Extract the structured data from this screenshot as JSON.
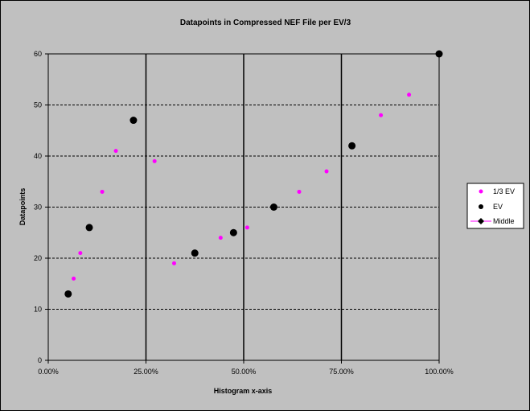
{
  "chart_data": {
    "type": "scatter",
    "title": "Datapoints in Compressed NEF File per EV/3",
    "xlabel": "Histogram x-axis",
    "ylabel": "Datapoints",
    "xlim": [
      0,
      1
    ],
    "ylim": [
      0,
      60
    ],
    "x_ticks": [
      0,
      0.25,
      0.5,
      0.75,
      1
    ],
    "x_tick_labels": [
      "0.00%",
      "25.00%",
      "50.00%",
      "75.00%",
      "100.00%"
    ],
    "y_ticks": [
      0,
      10,
      20,
      30,
      40,
      50,
      60
    ],
    "y_tick_labels": [
      "0",
      "10",
      "20",
      "30",
      "40",
      "50",
      "60"
    ],
    "grid": {
      "vertical": "solid",
      "horizontal": "dashed"
    },
    "legend_position": "right",
    "series": [
      {
        "name": "1/3 EV",
        "color": "#ff00ff",
        "marker": "small-dot",
        "points": [
          {
            "x": 0.065,
            "y": 16
          },
          {
            "x": 0.082,
            "y": 21
          },
          {
            "x": 0.138,
            "y": 33
          },
          {
            "x": 0.173,
            "y": 41
          },
          {
            "x": 0.272,
            "y": 39
          },
          {
            "x": 0.322,
            "y": 19
          },
          {
            "x": 0.441,
            "y": 24
          },
          {
            "x": 0.509,
            "y": 26
          },
          {
            "x": 0.642,
            "y": 33
          },
          {
            "x": 0.712,
            "y": 37
          },
          {
            "x": 0.851,
            "y": 48
          },
          {
            "x": 0.923,
            "y": 52
          }
        ]
      },
      {
        "name": "EV",
        "color": "#000000",
        "marker": "large-dot",
        "points": [
          {
            "x": 0.051,
            "y": 13
          },
          {
            "x": 0.105,
            "y": 26
          },
          {
            "x": 0.218,
            "y": 47
          },
          {
            "x": 0.375,
            "y": 21
          },
          {
            "x": 0.474,
            "y": 25
          },
          {
            "x": 0.577,
            "y": 30
          },
          {
            "x": 0.777,
            "y": 42
          },
          {
            "x": 1.0,
            "y": 60
          }
        ]
      },
      {
        "name": "Middle",
        "color": "#000000",
        "line_color": "#ff00ff",
        "marker": "diamond-line",
        "points": []
      }
    ]
  }
}
